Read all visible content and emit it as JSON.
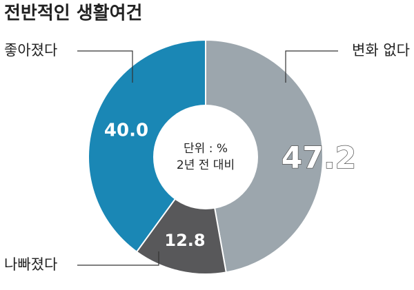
{
  "chart_data": {
    "type": "donut",
    "title": "전반적인 생활여건",
    "annotations": [
      "단위 : %",
      "2년 전 대비"
    ],
    "categories": [
      "변화 없다",
      "나빠졌다",
      "좋아졌다"
    ],
    "values": [
      47.2,
      12.8,
      40.0
    ],
    "value_labels": [
      "47.2",
      "12.8",
      "40.0"
    ],
    "colors": [
      "#9ca6ad",
      "#58585a",
      "#1a87b5"
    ]
  }
}
